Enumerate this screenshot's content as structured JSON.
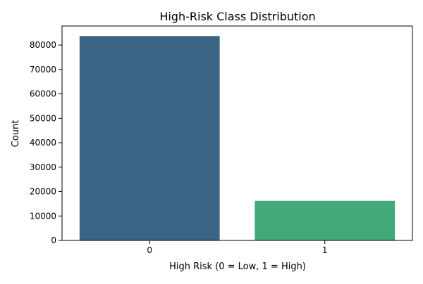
{
  "chart_data": {
    "type": "bar",
    "title": "High-Risk Class Distribution",
    "xlabel": "High Risk (0 = Low, 1 = High)",
    "ylabel": "Count",
    "categories": [
      "0",
      "1"
    ],
    "values": [
      83700,
      16200
    ],
    "ylim": [
      0,
      87800
    ],
    "yticks": [
      0,
      10000,
      20000,
      30000,
      40000,
      50000,
      60000,
      70000,
      80000
    ],
    "colors": [
      "#3b6585",
      "#43a978"
    ],
    "grid": false,
    "legend": "none"
  }
}
